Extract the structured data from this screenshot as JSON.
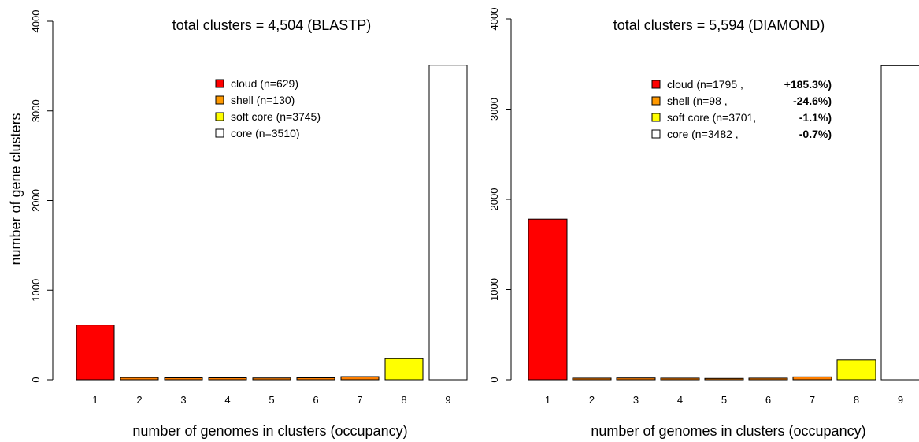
{
  "chart_data": [
    {
      "type": "bar",
      "title": "total clusters = 4,504 (BLASTP)",
      "xlabel": "number of genomes in clusters (occupancy)",
      "ylabel": "number of gene clusters",
      "ylim": [
        0,
        4000
      ],
      "yticks": [
        0,
        1000,
        2000,
        3000,
        4000
      ],
      "categories": [
        "1",
        "2",
        "3",
        "4",
        "5",
        "6",
        "7",
        "8",
        "9"
      ],
      "values": [
        610,
        25,
        22,
        22,
        20,
        22,
        35,
        235,
        3510
      ],
      "bar_colors": [
        "#ff0000",
        "#ff7f00",
        "#ff7f00",
        "#ff7f00",
        "#ff7f00",
        "#ff7f00",
        "#ff7f00",
        "#ffff00",
        "#ffffff"
      ],
      "legend": {
        "placement": "top-right",
        "entries": [
          {
            "label": "cloud (n=629)",
            "color": "#ff0000"
          },
          {
            "label": "shell (n=130)",
            "color": "#ff9900"
          },
          {
            "label": "soft core (n=3745)",
            "color": "#ffff00"
          },
          {
            "label": "core (n=3510)",
            "color": "#ffffff"
          }
        ]
      }
    },
    {
      "type": "bar",
      "title": "total clusters = 5,594 (DIAMOND)",
      "xlabel": "number of genomes in clusters (occupancy)",
      "ylabel": "",
      "ylim": [
        0,
        4000
      ],
      "yticks": [
        0,
        1000,
        2000,
        3000,
        4000
      ],
      "categories": [
        "1",
        "2",
        "3",
        "4",
        "5",
        "6",
        "7",
        "8",
        "9"
      ],
      "values": [
        1780,
        18,
        20,
        18,
        15,
        18,
        32,
        220,
        3482
      ],
      "bar_colors": [
        "#ff0000",
        "#ff7f00",
        "#ff7f00",
        "#ff7f00",
        "#ff7f00",
        "#ff7f00",
        "#ff7f00",
        "#ffff00",
        "#ffffff"
      ],
      "legend": {
        "placement": "top-right",
        "entries": [
          {
            "label": "cloud (n=1795 ,",
            "change": "+185.3%)",
            "color": "#ff0000"
          },
          {
            "label": "shell (n=98 ,",
            "change": "-24.6%)",
            "color": "#ff9900"
          },
          {
            "label": "soft core (n=3701,",
            "change": "-1.1%)",
            "color": "#ffff00"
          },
          {
            "label": "core (n=3482 ,",
            "change": "-0.7%)",
            "color": "#ffffff"
          }
        ]
      }
    }
  ]
}
